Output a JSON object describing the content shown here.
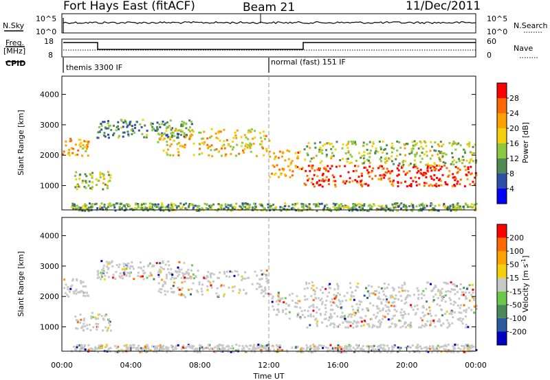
{
  "header": {
    "station": "Fort Hays East (fitACF)",
    "beam": "Beam 21",
    "date": "11/Dec/2011"
  },
  "strips": {
    "nsky_label": "N.Sky",
    "nsky_ticks": [
      "10^5",
      "10^0"
    ],
    "nsearch_label": "N.Search",
    "nsearch_ticks": [
      "10^5",
      "10^0"
    ],
    "freq_label_1": "Freq.",
    "freq_label_2": "[MHz]",
    "freq_ticks": [
      "18",
      "8"
    ],
    "nave_label": "Nave",
    "nave_ticks": [
      "60",
      "0"
    ],
    "cpid_label": "CPID",
    "cpid_segments": [
      {
        "label": "themis 3300 IF",
        "start_hour": 0
      },
      {
        "label": "normal (fast) 151 IF",
        "start_hour": 12
      }
    ]
  },
  "chart_data": [
    {
      "type": "heatmap",
      "panel": "power",
      "ylabel": "Slant Range [km]",
      "yticks": [
        1000,
        2000,
        3000,
        4000
      ],
      "ylim": [
        200,
        4600
      ],
      "xlim_hours": [
        0,
        24
      ],
      "colorbar_label": "Power [dB]",
      "colorbar_ticks": [
        "4",
        "8",
        "12",
        "16",
        "20",
        "24",
        "28"
      ],
      "colorbar_colors": [
        "#0000ff",
        "#2e4fa8",
        "#4f8a55",
        "#8cc840",
        "#f4d10d",
        "#ffa100",
        "#ff6a00",
        "#ff0000"
      ],
      "echo_bands": [
        {
          "t0": 0.0,
          "t1": 1.5,
          "r0": 2000,
          "r1": 2600,
          "level": 0.7
        },
        {
          "t0": 0.7,
          "t1": 2.8,
          "r0": 900,
          "r1": 1500,
          "level": 0.45
        },
        {
          "t0": 2.0,
          "t1": 7.5,
          "r0": 2600,
          "r1": 3200,
          "level": 0.3
        },
        {
          "t0": 5.5,
          "t1": 12.0,
          "r0": 2000,
          "r1": 2900,
          "level": 0.6
        },
        {
          "t0": 12.0,
          "t1": 14.0,
          "r0": 1300,
          "r1": 2200,
          "level": 0.75
        },
        {
          "t0": 14.0,
          "t1": 24.0,
          "r0": 1000,
          "r1": 1700,
          "level": 0.95
        },
        {
          "t0": 14.0,
          "t1": 24.0,
          "r0": 1700,
          "r1": 2500,
          "level": 0.45
        },
        {
          "t0": 0.5,
          "t1": 24.0,
          "r0": 200,
          "r1": 450,
          "level": 0.35
        }
      ]
    },
    {
      "type": "heatmap",
      "panel": "velocity",
      "ylabel": "Slant Range [km]",
      "yticks": [
        1000,
        2000,
        3000,
        4000
      ],
      "ylim": [
        200,
        4600
      ],
      "xlim_hours": [
        0,
        24
      ],
      "xticks": [
        "00:00",
        "04:00",
        "08:00",
        "12:00",
        "16:00",
        "20:00",
        "00:00"
      ],
      "xlabel": "Time UT",
      "colorbar_label": "Velocity [m s^-1]",
      "colorbar_ticks": [
        "200",
        "100",
        "50",
        "15",
        "-15",
        "-50",
        "-100",
        "-200"
      ],
      "colorbar_colors": [
        "#0000c0",
        "#2a5aa0",
        "#4a8a5a",
        "#6ac84a",
        "#c8c8c8",
        "#f4d10d",
        "#ffa100",
        "#ff6a00",
        "#ff0000"
      ],
      "echo_bands": [
        {
          "t0": 0.0,
          "t1": 1.5,
          "r0": 2000,
          "r1": 2600,
          "level": 0.5
        },
        {
          "t0": 0.7,
          "t1": 2.8,
          "r0": 900,
          "r1": 1500,
          "level": 0.5
        },
        {
          "t0": 2.0,
          "t1": 7.5,
          "r0": 2600,
          "r1": 3200,
          "level": 0.5
        },
        {
          "t0": 5.5,
          "t1": 12.0,
          "r0": 2000,
          "r1": 2900,
          "level": 0.5
        },
        {
          "t0": 12.0,
          "t1": 14.0,
          "r0": 1300,
          "r1": 2200,
          "level": 0.35
        },
        {
          "t0": 14.0,
          "t1": 24.0,
          "r0": 1000,
          "r1": 1700,
          "level": 0.5
        },
        {
          "t0": 14.0,
          "t1": 24.0,
          "r0": 1700,
          "r1": 2500,
          "level": 0.5
        },
        {
          "t0": 0.5,
          "t1": 24.0,
          "r0": 200,
          "r1": 450,
          "level": 0.55
        }
      ]
    }
  ]
}
